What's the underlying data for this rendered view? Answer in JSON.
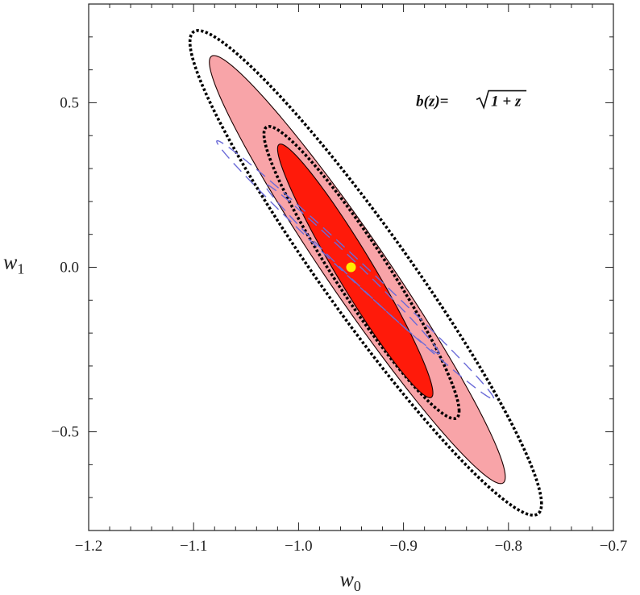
{
  "chart_data": {
    "type": "contour",
    "title": "",
    "xlabel": "w",
    "xlabel_sub": "0",
    "ylabel": "w",
    "ylabel_sub": "1",
    "xlim": [
      -1.2,
      -0.7
    ],
    "ylim": [
      -0.8,
      0.8
    ],
    "x_ticks": [
      -1.2,
      -1.1,
      -1.0,
      -0.9,
      -0.8,
      -0.7
    ],
    "x_tick_labels": [
      "−1.2",
      "−1.1",
      "−1.0",
      "−0.9",
      "−0.8",
      "−0.7"
    ],
    "y_ticks": [
      -0.5,
      0.0,
      0.5
    ],
    "y_tick_labels": [
      "−0.5",
      "0.0",
      "0.5"
    ],
    "annotation": {
      "prefix": "b(z)=",
      "radicand": "1 + z",
      "x": -0.885,
      "y": 0.49
    },
    "fiducial": {
      "x": -0.95,
      "y": 0.0,
      "color": "#ffee00"
    },
    "contours": [
      {
        "style": "dotted-black",
        "center": [
          -0.936,
          -0.017
        ],
        "x_range": [
          -1.105,
          -0.77
        ],
        "y_range": [
          -0.743,
          0.73
        ],
        "rho": -0.953,
        "color": "#000000"
      },
      {
        "style": "filled-light",
        "center": [
          -0.944,
          -0.007
        ],
        "x_range": [
          -1.082,
          -0.8
        ],
        "y_range": [
          -0.655,
          0.646
        ],
        "rho": -0.969,
        "fill": "#f8a4a8"
      },
      {
        "style": "dotted-black",
        "center": [
          -0.94,
          -0.016
        ],
        "x_range": [
          -1.033,
          -0.847
        ],
        "y_range": [
          -0.451,
          0.437
        ],
        "rho": -0.948,
        "color": "#000000"
      },
      {
        "style": "filled-dark",
        "center": [
          -0.946,
          -0.011
        ],
        "x_range": [
          -1.02,
          -0.872
        ],
        "y_range": [
          -0.393,
          0.378
        ],
        "rho": -0.962,
        "fill": "#ff1a0a"
      },
      {
        "style": "dashed-blue",
        "center": [
          -0.946,
          -0.008
        ],
        "x_range": [
          -1.082,
          -0.818
        ],
        "y_range": [
          -0.385,
          0.4
        ],
        "rho": -0.995,
        "color": "#6b6bd8"
      },
      {
        "style": "dashed-blue",
        "center": [
          -0.949,
          -0.005
        ],
        "x_range": [
          -1.028,
          -0.862
        ],
        "y_range": [
          -0.26,
          0.255
        ],
        "rho": -0.993,
        "color": "#6b6bd8"
      }
    ]
  }
}
